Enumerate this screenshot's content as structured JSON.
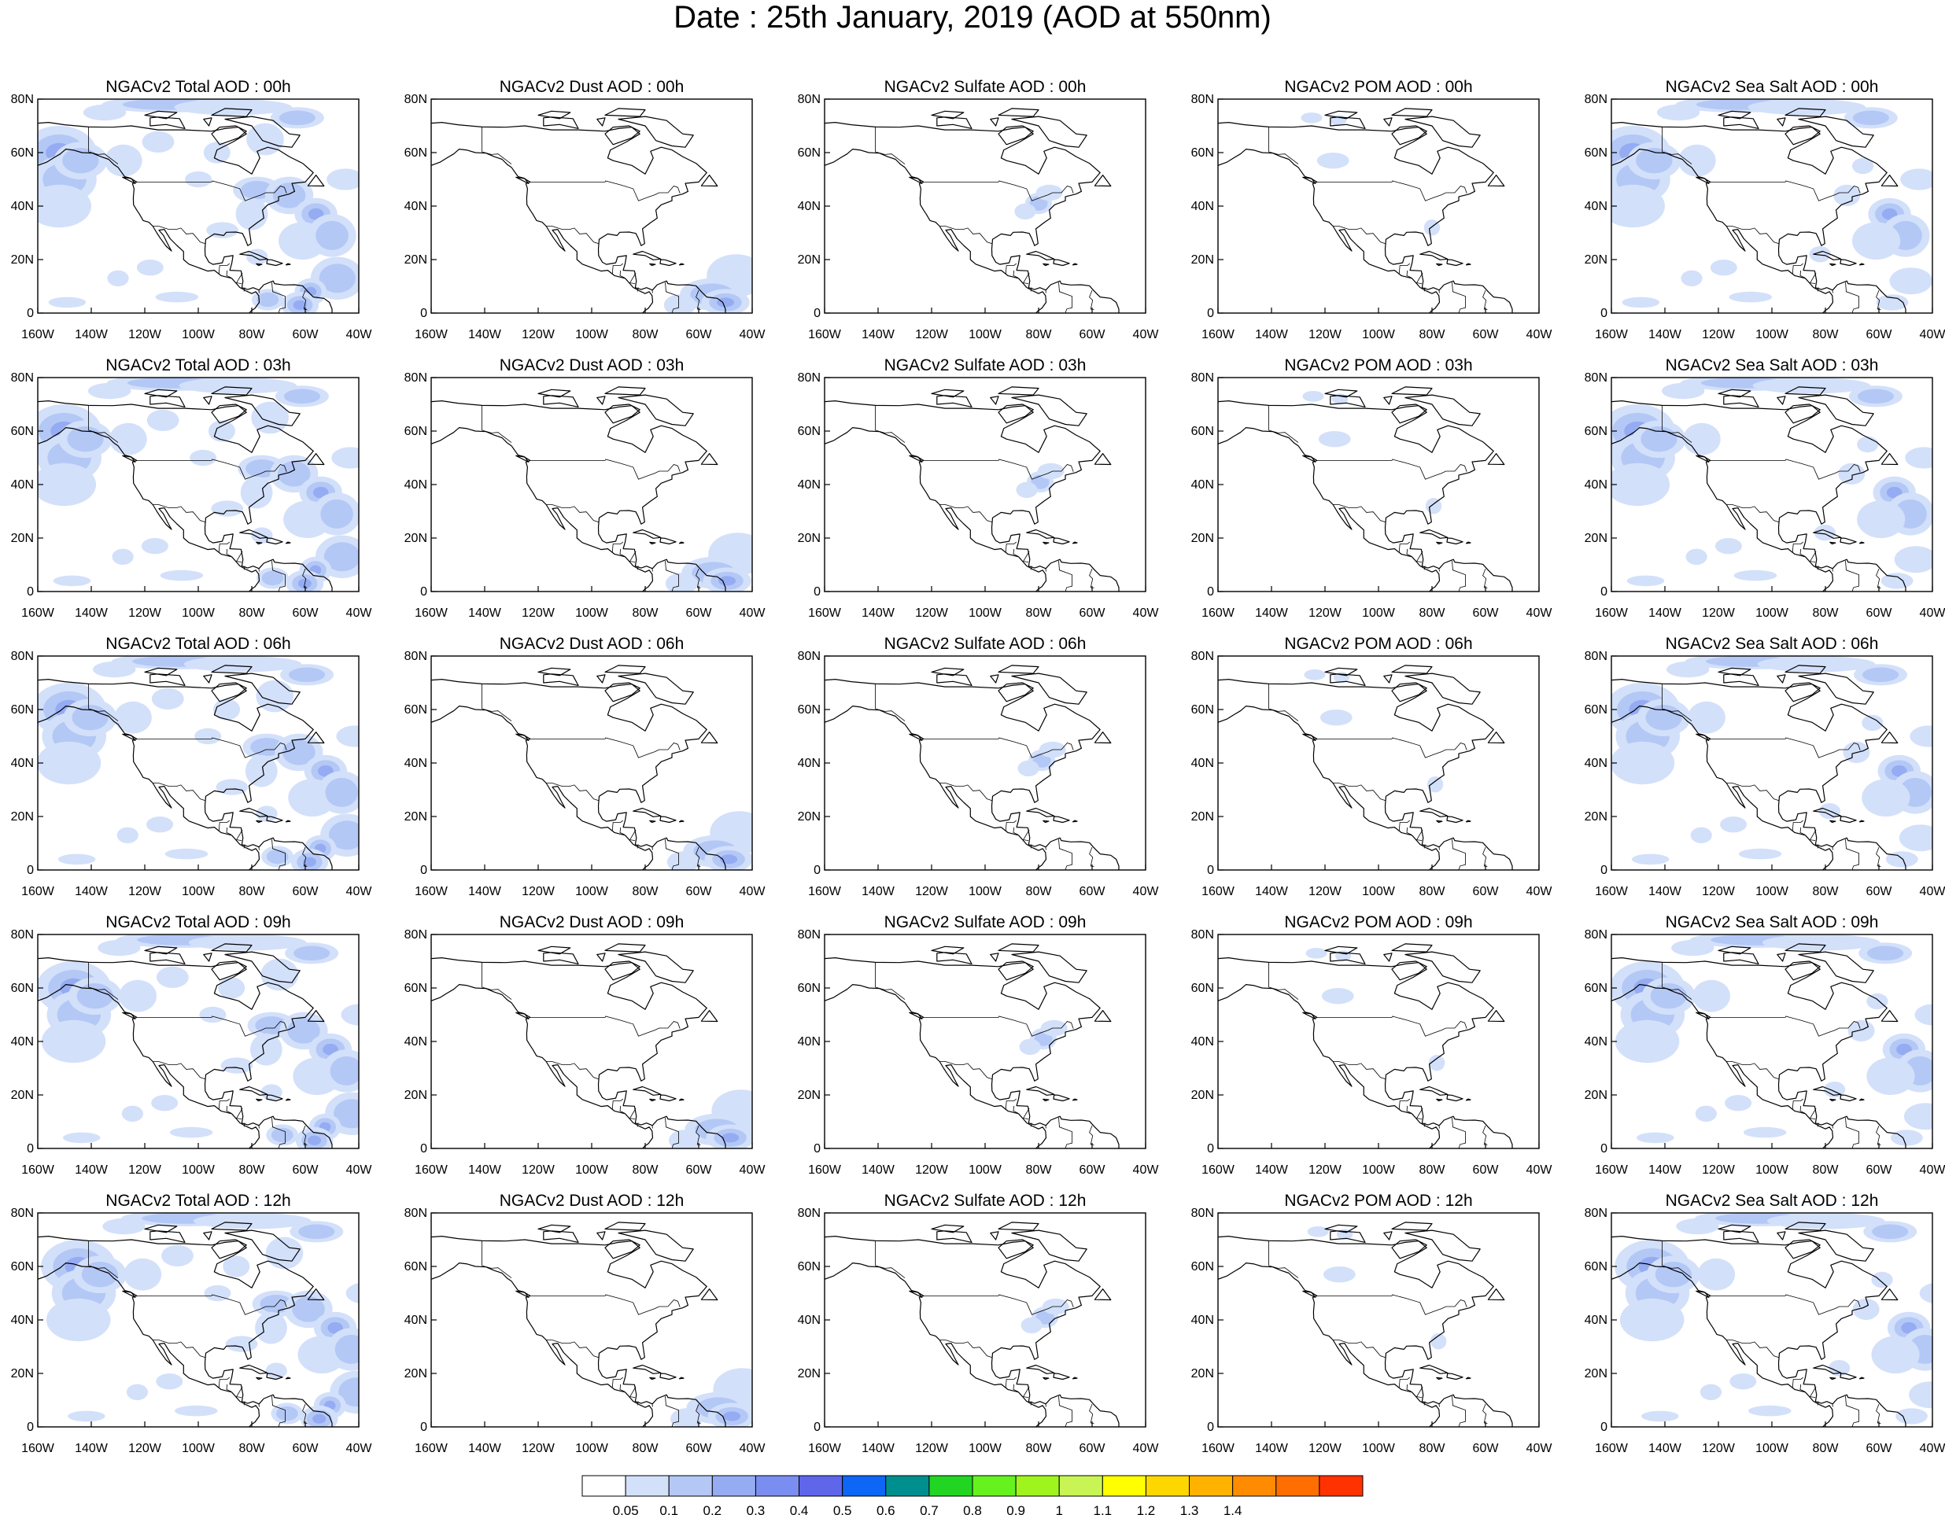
{
  "title": "Date : 25th January, 2019 (AOD at 550nm)",
  "panels": [
    [
      "NGACv2 Total AOD : 00h",
      "NGACv2 Dust AOD : 00h",
      "NGACv2 Sulfate AOD : 00h",
      "NGACv2 POM AOD : 00h",
      "NGACv2 Sea Salt AOD : 00h"
    ],
    [
      "NGACv2 Total AOD : 03h",
      "NGACv2 Dust AOD : 03h",
      "NGACv2 Sulfate AOD : 03h",
      "NGACv2 POM AOD : 03h",
      "NGACv2 Sea Salt AOD : 03h"
    ],
    [
      "NGACv2 Total AOD : 06h",
      "NGACv2 Dust AOD : 06h",
      "NGACv2 Sulfate AOD : 06h",
      "NGACv2 POM AOD : 06h",
      "NGACv2 Sea Salt AOD : 06h"
    ],
    [
      "NGACv2 Total AOD : 09h",
      "NGACv2 Dust AOD : 09h",
      "NGACv2 Sulfate AOD : 09h",
      "NGACv2 POM AOD : 09h",
      "NGACv2 Sea Salt  AOD : 09h"
    ],
    [
      "NGACv2 Total AOD  : 12h",
      "NGACv2 Dust AOD : 12h",
      "NGACv2 Sulfate AOD : 12h",
      "NGACv2 POM  AOD : 12h",
      "NGACv2 Sea Salt  AOD : 12h"
    ]
  ],
  "lat_ticks": [
    "0",
    "20N",
    "40N",
    "60N",
    "80N"
  ],
  "lon_ticks": [
    "160W",
    "140W",
    "120W",
    "100W",
    "80W",
    "60W",
    "40W"
  ],
  "lon_range": [
    -160,
    -40
  ],
  "lat_range": [
    0,
    80
  ],
  "colorbar": {
    "colors": [
      "#ffffff",
      "#d3e0fa",
      "#b4c8f6",
      "#95acf3",
      "#7a8df0",
      "#5f66ea",
      "#0d66f5",
      "#008f8f",
      "#22d522",
      "#66f21e",
      "#a0f41e",
      "#c8f554",
      "#ffff00",
      "#ffd700",
      "#ffb300",
      "#ff8c00",
      "#ff6e00",
      "#ff3200"
    ],
    "labels": [
      "0.05",
      "0.1",
      "0.2",
      "0.3",
      "0.4",
      "0.5",
      "0.6",
      "0.7",
      "0.8",
      "0.9",
      "1",
      "1.1",
      "1.2",
      "1.3",
      "1.4"
    ]
  }
}
